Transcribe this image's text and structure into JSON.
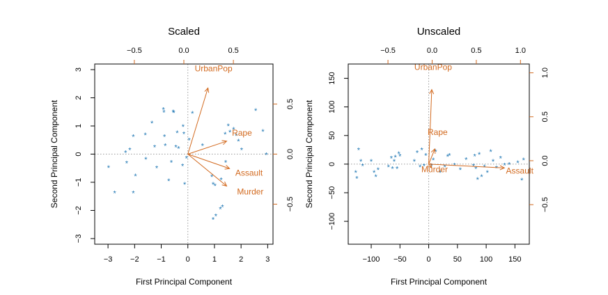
{
  "colors": {
    "points": "#1f77b4",
    "vectors": "#d2691e",
    "axis": "#000000",
    "reference": "#999999"
  },
  "chart_data": [
    {
      "type": "scatter",
      "title": "Scaled",
      "xlabel": "First Principal Component",
      "ylabel": "Second Principal Component",
      "xlim": [
        -3.5,
        3.2
      ],
      "ylim": [
        -3.2,
        3.2
      ],
      "x_ticks": [
        -3,
        -2,
        -1,
        0,
        1,
        2,
        3
      ],
      "y_ticks": [
        -3,
        -2,
        -1,
        0,
        1,
        2,
        3
      ],
      "x_tick_labels": [
        "−3",
        "−2",
        "−1",
        "0",
        "1",
        "2",
        "3"
      ],
      "y_tick_labels": [
        "−3",
        "−2",
        "−1",
        "0",
        "1",
        "2",
        "3"
      ],
      "secondary_xlim": [
        -0.9,
        0.9
      ],
      "secondary_x_ticks": [
        -0.5,
        0.0,
        0.5
      ],
      "secondary_x_tick_labels": [
        "−0.5",
        "0.0",
        "0.5"
      ],
      "secondary_ylim": [
        -0.9,
        0.9
      ],
      "secondary_y_ticks": [
        -0.5,
        0.0,
        0.5
      ],
      "secondary_y_tick_labels": [
        "−0.5",
        "0.0",
        "0.5"
      ],
      "marker": "*",
      "points": [
        [
          -2.98,
          -0.48
        ],
        [
          -2.75,
          -1.38
        ],
        [
          -2.34,
          0.05
        ],
        [
          -2.3,
          -0.32
        ],
        [
          -2.18,
          0.15
        ],
        [
          -2.05,
          0.62
        ],
        [
          -2.05,
          -1.38
        ],
        [
          -1.97,
          -0.78
        ],
        [
          -1.6,
          0.68
        ],
        [
          -1.58,
          -0.18
        ],
        [
          -1.35,
          1.1
        ],
        [
          -1.25,
          0.25
        ],
        [
          -1.17,
          -0.5
        ],
        [
          -0.92,
          1.58
        ],
        [
          -0.9,
          1.48
        ],
        [
          -0.88,
          0.62
        ],
        [
          -0.85,
          0.3
        ],
        [
          -0.72,
          -0.95
        ],
        [
          -0.62,
          -0.3
        ],
        [
          -0.55,
          1.5
        ],
        [
          -0.53,
          1.47
        ],
        [
          -0.45,
          0.25
        ],
        [
          -0.4,
          0.75
        ],
        [
          -0.35,
          0.2
        ],
        [
          -0.2,
          -0.42
        ],
        [
          -0.18,
          0.98
        ],
        [
          -0.15,
          0.72
        ],
        [
          -0.12,
          -1.07
        ],
        [
          -0.05,
          -0.15
        ],
        [
          0.05,
          0.5
        ],
        [
          0.17,
          1.45
        ],
        [
          0.55,
          0.3
        ],
        [
          0.9,
          -0.8
        ],
        [
          0.95,
          -1.07
        ],
        [
          1.02,
          -1.12
        ],
        [
          0.95,
          -2.32
        ],
        [
          1.05,
          -2.2
        ],
        [
          1.22,
          -1.95
        ],
        [
          1.3,
          -1.88
        ],
        [
          1.25,
          -0.92
        ],
        [
          1.4,
          0.7
        ],
        [
          1.42,
          -0.3
        ],
        [
          1.52,
          1.0
        ],
        [
          1.58,
          0.78
        ],
        [
          1.72,
          0.88
        ],
        [
          1.82,
          0.65
        ],
        [
          1.9,
          0.46
        ],
        [
          2.02,
          0.15
        ],
        [
          2.55,
          1.55
        ],
        [
          2.82,
          0.8
        ],
        [
          2.95,
          -0.02
        ]
      ],
      "vectors": [
        {
          "name": "UrbanPop",
          "pc1": 0.28,
          "pc2": 0.87
        },
        {
          "name": "Rape",
          "pc1": 0.54,
          "pc2": 0.17
        },
        {
          "name": "Assault",
          "pc1": 0.58,
          "pc2": -0.19
        },
        {
          "name": "Murder",
          "pc1": 0.54,
          "pc2": -0.42
        }
      ],
      "vector_scale": 2.7,
      "grid": false,
      "reference_lines": true
    },
    {
      "type": "scatter",
      "title": "Unscaled",
      "xlabel": "First Principal Component",
      "ylabel": "Second Principal Component",
      "xlim": [
        -140,
        175
      ],
      "ylim": [
        -140,
        175
      ],
      "x_ticks": [
        -100,
        -50,
        0,
        50,
        100,
        150
      ],
      "y_ticks": [
        -100,
        -50,
        0,
        50,
        100,
        150
      ],
      "x_tick_labels": [
        "−100",
        "−50",
        "0",
        "50",
        "100",
        "150"
      ],
      "y_tick_labels": [
        "−100",
        "−50",
        "0",
        "50",
        "100",
        "150"
      ],
      "secondary_xlim": [
        -0.95,
        1.1
      ],
      "secondary_x_ticks": [
        -0.5,
        0.0,
        0.5,
        1.0
      ],
      "secondary_x_tick_labels": [
        "−0.5",
        "0.0",
        "0.5",
        "1.0"
      ],
      "secondary_ylim": [
        -0.95,
        1.1
      ],
      "secondary_y_ticks": [
        -0.5,
        0.0,
        0.5,
        1.0
      ],
      "secondary_y_tick_labels": [
        "−0.5",
        "0.0",
        "0.5",
        "1.0"
      ],
      "marker": "*",
      "points": [
        [
          -127,
          -15
        ],
        [
          -125,
          -25
        ],
        [
          -122,
          25
        ],
        [
          -118,
          5
        ],
        [
          -115,
          -3
        ],
        [
          -100,
          5
        ],
        [
          -95,
          -15
        ],
        [
          -92,
          -22
        ],
        [
          -88,
          -10
        ],
        [
          -70,
          -5
        ],
        [
          -65,
          10
        ],
        [
          -63,
          -8
        ],
        [
          -60,
          5
        ],
        [
          -58,
          12
        ],
        [
          -55,
          -8
        ],
        [
          -52,
          18
        ],
        [
          -50,
          14
        ],
        [
          -25,
          5
        ],
        [
          -20,
          20
        ],
        [
          -15,
          -5
        ],
        [
          -12,
          25
        ],
        [
          -8,
          -3
        ],
        [
          -5,
          15
        ],
        [
          5,
          -3
        ],
        [
          8,
          7
        ],
        [
          12,
          22
        ],
        [
          20,
          -15
        ],
        [
          28,
          -5
        ],
        [
          33,
          13
        ],
        [
          36,
          15
        ],
        [
          45,
          -2
        ],
        [
          55,
          -10
        ],
        [
          65,
          8
        ],
        [
          78,
          -3
        ],
        [
          80,
          14
        ],
        [
          82,
          -8
        ],
        [
          85,
          -27
        ],
        [
          88,
          17
        ],
        [
          92,
          -22
        ],
        [
          97,
          -5
        ],
        [
          102,
          -15
        ],
        [
          108,
          22
        ],
        [
          112,
          5
        ],
        [
          118,
          -7
        ],
        [
          125,
          10
        ],
        [
          132,
          -2
        ],
        [
          140,
          -1
        ],
        [
          155,
          2
        ],
        [
          162,
          -28
        ],
        [
          165,
          7
        ]
      ],
      "vectors": [
        {
          "name": "UrbanPop",
          "pc1": 0.04,
          "pc2": 0.98
        },
        {
          "name": "Rape",
          "pc1": 0.08,
          "pc2": 0.2
        },
        {
          "name": "Murder",
          "pc1": 0.04,
          "pc2": -0.05
        },
        {
          "name": "Assault",
          "pc1": 0.99,
          "pc2": -0.05
        }
      ],
      "vector_scale": 133,
      "grid": false,
      "reference_lines": true
    }
  ]
}
